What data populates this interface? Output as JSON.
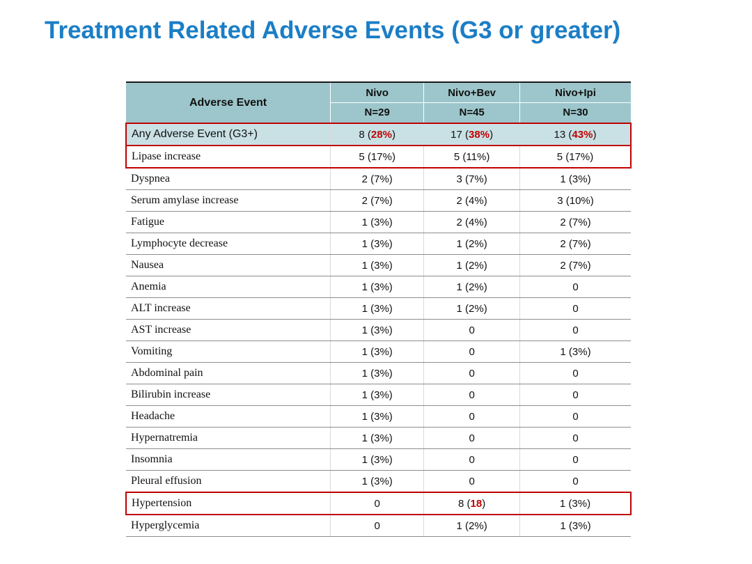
{
  "slide": {
    "title": "Treatment Related Adverse Events (G3 or greater)"
  },
  "colors": {
    "title": "#1b7ec6",
    "header_bg": "#9cc6cb",
    "highlight_bg": "#c9e1e5",
    "red": "#c00000",
    "row_line": "#8c8c8c"
  },
  "table": {
    "header": {
      "col1": "Adverse Event",
      "columns": [
        {
          "name": "Nivo",
          "n": "N=29"
        },
        {
          "name": "Nivo+Bev",
          "n": "N=45"
        },
        {
          "name": "Nivo+Ipi",
          "n": "N=30"
        }
      ]
    },
    "rows": [
      {
        "label": "Any Adverse Event (G3+)",
        "highlight": true,
        "redbox": true,
        "label_sans": true,
        "cells": [
          [
            {
              "t": "8 ("
            },
            {
              "t": "28%",
              "red": true
            },
            {
              "t": ")"
            }
          ],
          [
            {
              "t": "17 ("
            },
            {
              "t": "38%",
              "red": true
            },
            {
              "t": ")"
            }
          ],
          [
            {
              "t": "13 ("
            },
            {
              "t": "43%",
              "red": true
            },
            {
              "t": ")"
            }
          ]
        ]
      },
      {
        "label": "Lipase increase",
        "redbox": true,
        "cells": [
          [
            {
              "t": "5 (17%)"
            }
          ],
          [
            {
              "t": "5 (11%)"
            }
          ],
          [
            {
              "t": "5 (17%)"
            }
          ]
        ]
      },
      {
        "label": "Dyspnea",
        "cells": [
          [
            {
              "t": "2 (7%)"
            }
          ],
          [
            {
              "t": "3 (7%)"
            }
          ],
          [
            {
              "t": "1 (3%)"
            }
          ]
        ]
      },
      {
        "label": "Serum amylase increase",
        "cells": [
          [
            {
              "t": "2 (7%)"
            }
          ],
          [
            {
              "t": "2 (4%)"
            }
          ],
          [
            {
              "t": "3 (10%)"
            }
          ]
        ]
      },
      {
        "label": "Fatigue",
        "cells": [
          [
            {
              "t": "1 (3%)"
            }
          ],
          [
            {
              "t": "2 (4%)"
            }
          ],
          [
            {
              "t": "2 (7%)"
            }
          ]
        ]
      },
      {
        "label": "Lymphocyte decrease",
        "cells": [
          [
            {
              "t": "1 (3%)"
            }
          ],
          [
            {
              "t": "1 (2%)"
            }
          ],
          [
            {
              "t": "2 (7%)"
            }
          ]
        ]
      },
      {
        "label": "Nausea",
        "cells": [
          [
            {
              "t": "1 (3%)"
            }
          ],
          [
            {
              "t": "1 (2%)"
            }
          ],
          [
            {
              "t": "2 (7%)"
            }
          ]
        ]
      },
      {
        "label": "Anemia",
        "cells": [
          [
            {
              "t": "1 (3%)"
            }
          ],
          [
            {
              "t": "1 (2%)"
            }
          ],
          [
            {
              "t": "0"
            }
          ]
        ]
      },
      {
        "label": "ALT increase",
        "cells": [
          [
            {
              "t": "1 (3%)"
            }
          ],
          [
            {
              "t": "1 (2%)"
            }
          ],
          [
            {
              "t": "0"
            }
          ]
        ]
      },
      {
        "label": "AST increase",
        "cells": [
          [
            {
              "t": "1 (3%)"
            }
          ],
          [
            {
              "t": "0"
            }
          ],
          [
            {
              "t": "0"
            }
          ]
        ]
      },
      {
        "label": "Vomiting",
        "cells": [
          [
            {
              "t": "1 (3%)"
            }
          ],
          [
            {
              "t": "0"
            }
          ],
          [
            {
              "t": "1 (3%)"
            }
          ]
        ]
      },
      {
        "label": "Abdominal pain",
        "cells": [
          [
            {
              "t": "1 (3%)"
            }
          ],
          [
            {
              "t": "0"
            }
          ],
          [
            {
              "t": "0"
            }
          ]
        ]
      },
      {
        "label": "Bilirubin increase",
        "cells": [
          [
            {
              "t": "1 (3%)"
            }
          ],
          [
            {
              "t": "0"
            }
          ],
          [
            {
              "t": "0"
            }
          ]
        ]
      },
      {
        "label": "Headache",
        "cells": [
          [
            {
              "t": "1 (3%)"
            }
          ],
          [
            {
              "t": "0"
            }
          ],
          [
            {
              "t": "0"
            }
          ]
        ]
      },
      {
        "label": "Hypernatremia",
        "cells": [
          [
            {
              "t": "1 (3%)"
            }
          ],
          [
            {
              "t": "0"
            }
          ],
          [
            {
              "t": "0"
            }
          ]
        ]
      },
      {
        "label": "Insomnia",
        "cells": [
          [
            {
              "t": "1 (3%)"
            }
          ],
          [
            {
              "t": "0"
            }
          ],
          [
            {
              "t": "0"
            }
          ]
        ]
      },
      {
        "label": "Pleural effusion",
        "cells": [
          [
            {
              "t": "1 (3%)"
            }
          ],
          [
            {
              "t": "0"
            }
          ],
          [
            {
              "t": "0"
            }
          ]
        ]
      },
      {
        "label": "Hypertension",
        "redbox": true,
        "cells": [
          [
            {
              "t": "0"
            }
          ],
          [
            {
              "t": "8 ("
            },
            {
              "t": "18",
              "red": true
            },
            {
              "t": ")"
            }
          ],
          [
            {
              "t": "1 (3%)"
            }
          ]
        ]
      },
      {
        "label": "Hyperglycemia",
        "cells": [
          [
            {
              "t": "0"
            }
          ],
          [
            {
              "t": "1 (2%)"
            }
          ],
          [
            {
              "t": "1 (3%)"
            }
          ]
        ]
      }
    ]
  }
}
